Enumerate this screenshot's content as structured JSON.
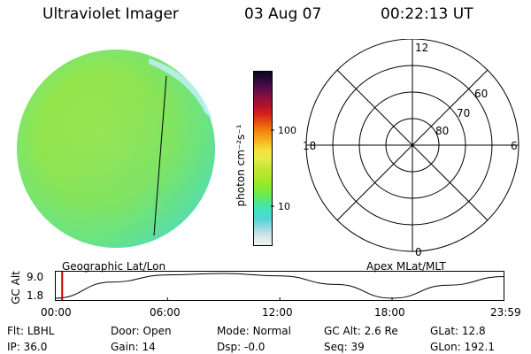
{
  "header": {
    "instrument": "Ultraviolet Imager",
    "date": "03 Aug 07",
    "time": "00:22:13 UT"
  },
  "colorbar": {
    "label": "photon cm⁻²s⁻¹",
    "ticks": [
      "100",
      "10"
    ],
    "colors": [
      "#f2f2f2",
      "#d8e6ea",
      "#9ad8e0",
      "#55d4d8",
      "#3fe4c0",
      "#4fe889",
      "#71ec45",
      "#93ea2a",
      "#b2e82c",
      "#c8e53a",
      "#e8ec48",
      "#f6df3a",
      "#f7b51e",
      "#f58b10",
      "#e85a0e",
      "#d8261a",
      "#b8102a",
      "#8e0f3e",
      "#5a0e4c",
      "#2d0a3a",
      "#0a0620"
    ]
  },
  "image_panel": {
    "label": "Geographic Lat/Lon"
  },
  "polar_plot": {
    "label": "Apex MLat/MLT",
    "mlt_labels": {
      "top": "12",
      "right": "6",
      "bottom": "0",
      "left": "18"
    },
    "lat_labels": [
      "60",
      "70",
      "80"
    ]
  },
  "orbit_plot": {
    "ylabel": "GC Alt",
    "yticks": [
      "9.0",
      "1.8"
    ],
    "xticks": [
      "00:00",
      "06:00",
      "12:00",
      "18:00",
      "23:59"
    ]
  },
  "info": {
    "flt_label": "Flt:",
    "flt_value": "LBHL",
    "ip_label": "IP:",
    "ip_value": "36.0",
    "door_label": "Door:",
    "door_value": "Open",
    "gain_label": "Gain:",
    "gain_value": "14",
    "mode_label": "Mode:",
    "mode_value": "Normal",
    "dsp_label": "Dsp:",
    "dsp_value": "-0.0",
    "gcalt_label": "GC Alt:",
    "gcalt_value": "2.6 Re",
    "seq_label": "Seq:",
    "seq_value": "39",
    "glat_label": "GLat:",
    "glat_value": "12.8",
    "glon_label": "GLon:",
    "glon_value": "192.1"
  },
  "chart_data": {
    "type": "line",
    "ylabel": "GC Alt",
    "xlabel": "",
    "x": [
      "00:00",
      "03:00",
      "06:00",
      "09:00",
      "12:00",
      "15:00",
      "18:00",
      "21:00",
      "23:59"
    ],
    "y": [
      1.8,
      6.5,
      8.6,
      9.0,
      8.3,
      5.8,
      1.8,
      5.6,
      8.1
    ],
    "ylim": [
      1.8,
      9.0
    ],
    "current_time_marker": "00:22"
  }
}
